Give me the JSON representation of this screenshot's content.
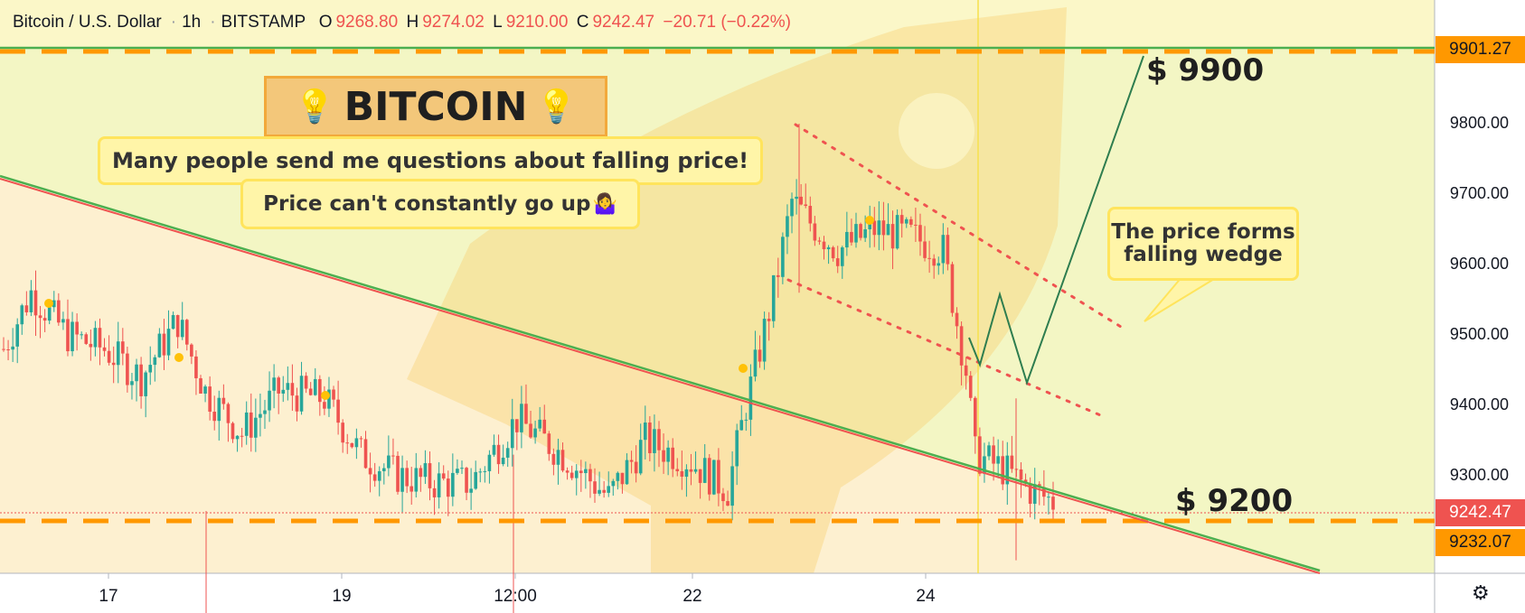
{
  "header": {
    "symbol": "Bitcoin / U.S. Dollar",
    "interval": "1h",
    "exchange": "BITSTAMP",
    "open_key": "O",
    "open": "9268.80",
    "high_key": "H",
    "high": "9274.02",
    "low_key": "L",
    "low": "9210.00",
    "close_key": "C",
    "close": "9242.47",
    "change": "−20.71 (−0.22%)"
  },
  "annotations": {
    "banner": "BITCOIN",
    "note1": "Many people send me questions about falling price!",
    "note2": "Price can't constantly go up",
    "note3_line1": "The price forms",
    "note3_line2": "falling wedge",
    "target_high": "$ 9900",
    "target_low": "$ 9200"
  },
  "price_axis": {
    "ticks": [
      "9800.00",
      "9700.00",
      "9600.00",
      "9500.00",
      "9400.00",
      "9300.00"
    ],
    "tag_top": "9901.27",
    "tag_current": "9242.47",
    "tag_bottom": "9232.07"
  },
  "time_axis": {
    "ticks": [
      "17",
      "19",
      "12:00",
      "22",
      "24"
    ]
  },
  "colors": {
    "up": "#26a69a",
    "down": "#ef5350",
    "support": "#ff9800",
    "trend": "#4caf50",
    "wedge": "#ef5350"
  },
  "chart_data": {
    "type": "candlestick",
    "ylim": [
      9160,
      9970
    ],
    "levels": {
      "resistance": 9901.27,
      "support": 9232.07,
      "last": 9242.47
    },
    "candle_seed": 7,
    "candle_count": 230,
    "candle_anchors": [
      [
        0,
        9480
      ],
      [
        6,
        9560
      ],
      [
        14,
        9500
      ],
      [
        22,
        9480
      ],
      [
        30,
        9440
      ],
      [
        38,
        9520
      ],
      [
        44,
        9420
      ],
      [
        52,
        9360
      ],
      [
        60,
        9420
      ],
      [
        70,
        9410
      ],
      [
        78,
        9330
      ],
      [
        86,
        9300
      ],
      [
        94,
        9290
      ],
      [
        102,
        9290
      ],
      [
        112,
        9380
      ],
      [
        122,
        9330
      ],
      [
        132,
        9270
      ],
      [
        140,
        9350
      ],
      [
        150,
        9320
      ],
      [
        158,
        9280
      ],
      [
        162,
        9400
      ],
      [
        168,
        9560
      ],
      [
        172,
        9690
      ],
      [
        176,
        9660
      ],
      [
        182,
        9620
      ],
      [
        190,
        9650
      ],
      [
        198,
        9640
      ],
      [
        205,
        9620
      ],
      [
        210,
        9450
      ],
      [
        212,
        9330
      ],
      [
        218,
        9310
      ],
      [
        224,
        9280
      ],
      [
        230,
        9260
      ]
    ]
  }
}
